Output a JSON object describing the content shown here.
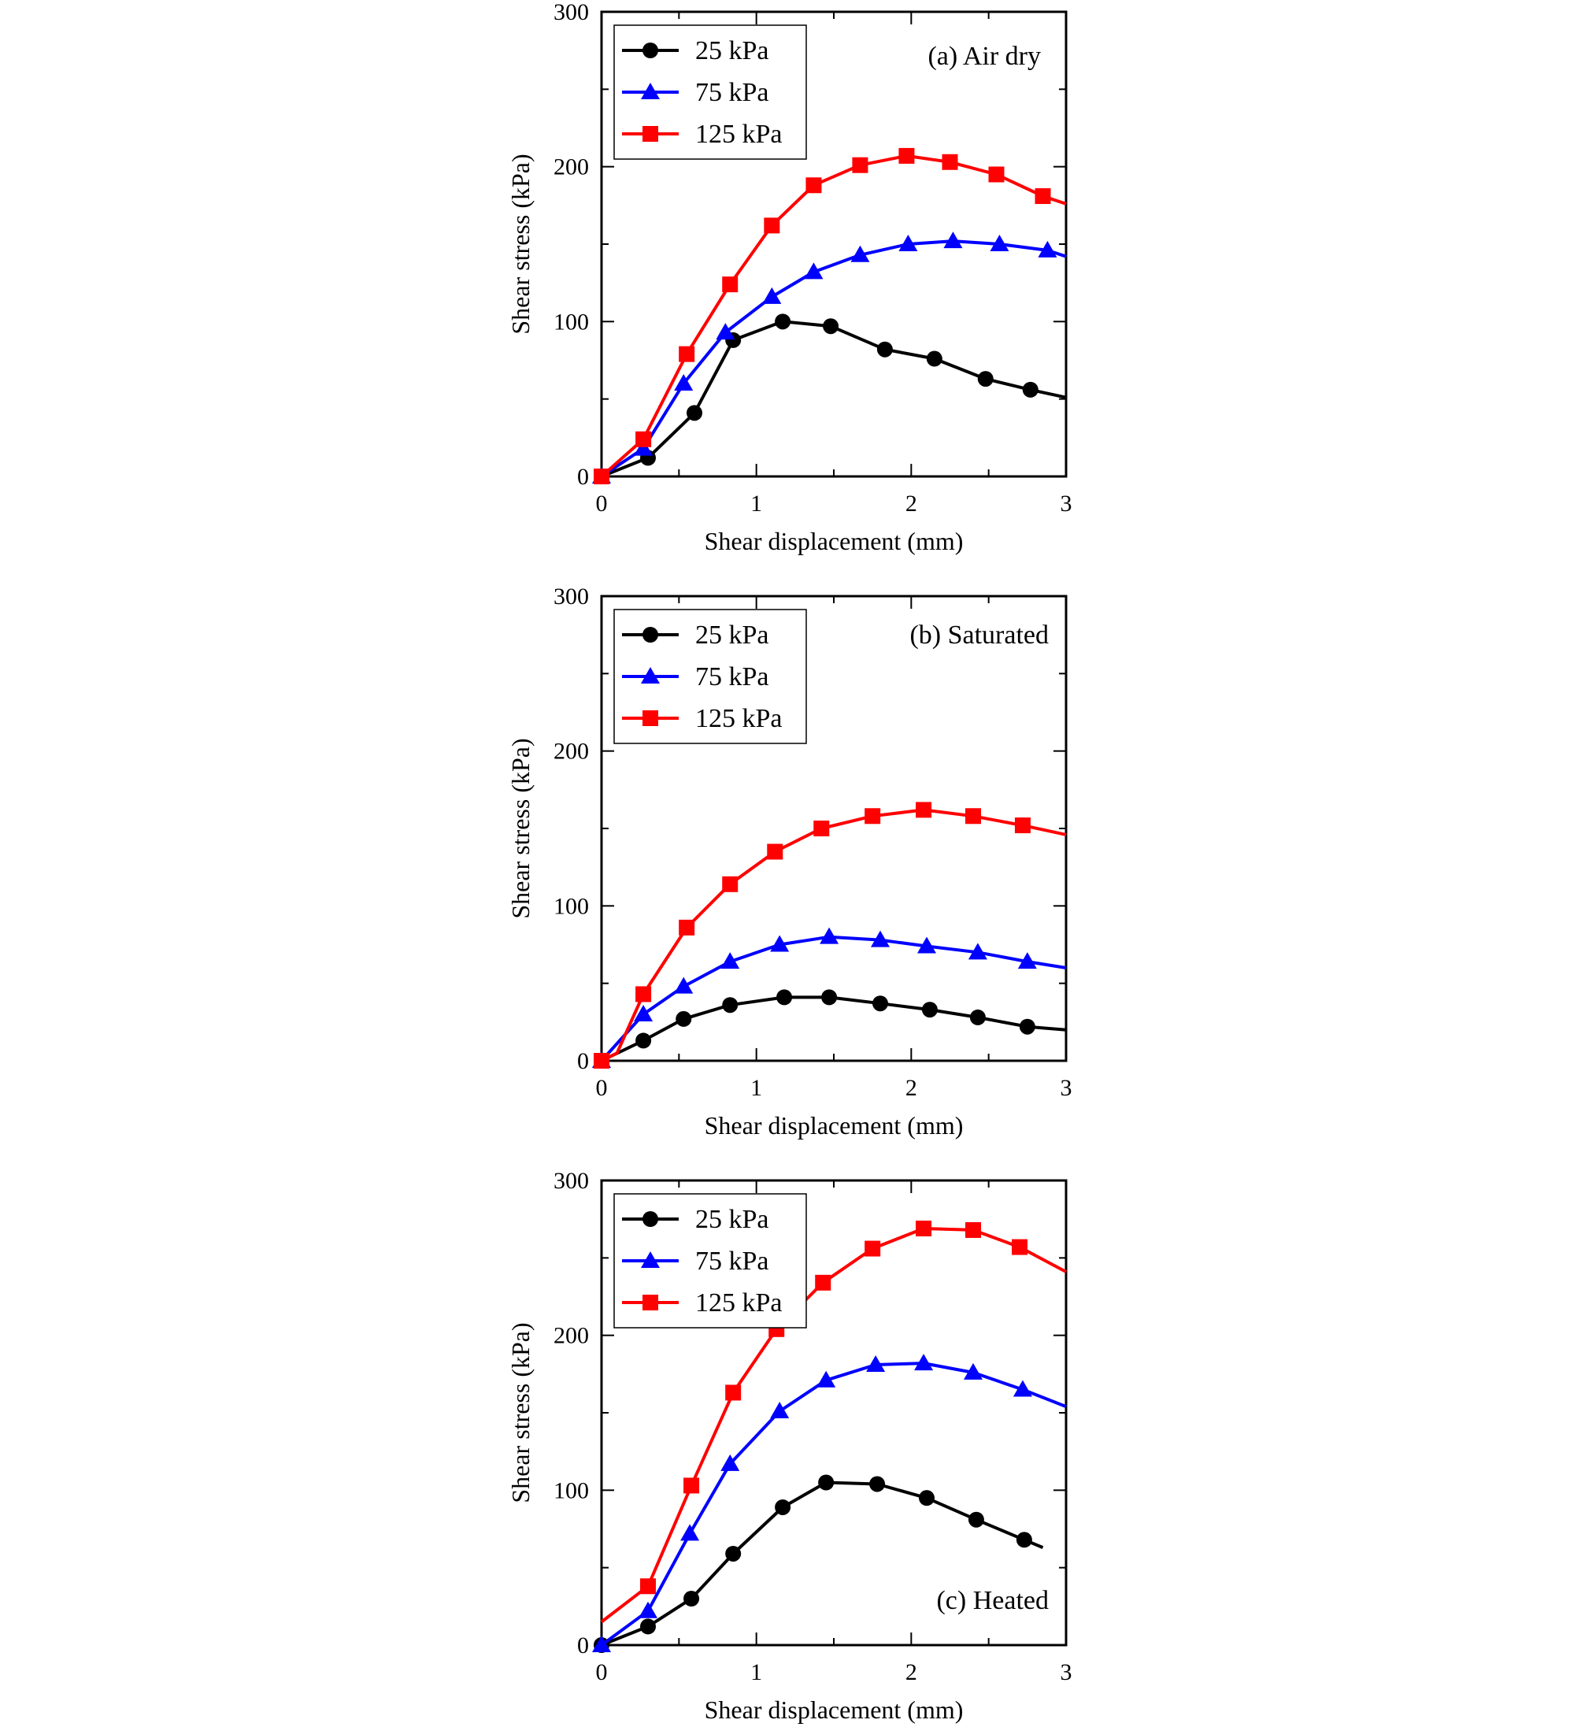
{
  "chart_data": [
    {
      "type": "line",
      "title": "(a) Air dry",
      "xlabel": "Shear displacement (mm)",
      "ylabel": "Shear stress (kPa)",
      "xlim": [
        0,
        3
      ],
      "ylim": [
        0,
        300
      ],
      "xticks": [
        "0",
        "1",
        "2",
        "3"
      ],
      "yticks": [
        "0",
        "100",
        "200",
        "300"
      ],
      "grid": false,
      "legend_position": "top-left",
      "title_position": "top-right",
      "series": [
        {
          "name": "25 kPa",
          "color": "#000000",
          "marker": "circle",
          "x": [
            0,
            0.3,
            0.6,
            0.85,
            1.17,
            1.48,
            1.83,
            2.15,
            2.48,
            2.77,
            3.0
          ],
          "y": [
            0,
            12,
            41,
            88,
            100,
            97,
            82,
            76,
            63,
            56,
            51
          ],
          "markers_x": [
            0,
            0.3,
            0.6,
            0.85,
            1.17,
            1.48,
            1.83,
            2.15,
            2.48,
            2.77
          ],
          "markers_y": [
            0,
            12,
            41,
            88,
            100,
            97,
            82,
            76,
            63,
            56
          ]
        },
        {
          "name": "75 kPa",
          "color": "#0000ff",
          "marker": "triangle",
          "x": [
            0,
            0.27,
            0.53,
            0.8,
            1.1,
            1.37,
            1.67,
            1.98,
            2.27,
            2.57,
            2.88,
            3.0
          ],
          "y": [
            0,
            18,
            60,
            93,
            116,
            132,
            143,
            150,
            152,
            150,
            146,
            142
          ],
          "markers_x": [
            0,
            0.27,
            0.53,
            0.8,
            1.1,
            1.37,
            1.67,
            1.98,
            2.27,
            2.57,
            2.88
          ],
          "markers_y": [
            0,
            18,
            60,
            93,
            116,
            132,
            143,
            150,
            152,
            150,
            146
          ]
        },
        {
          "name": "125 kPa",
          "color": "#ff0000",
          "marker": "square",
          "x": [
            0,
            0.27,
            0.55,
            0.83,
            1.1,
            1.37,
            1.67,
            1.97,
            2.25,
            2.55,
            2.85,
            3.0
          ],
          "y": [
            0,
            24,
            79,
            124,
            162,
            188,
            201,
            207,
            203,
            195,
            181,
            176
          ],
          "markers_x": [
            0,
            0.27,
            0.55,
            0.83,
            1.1,
            1.37,
            1.67,
            1.97,
            2.25,
            2.55,
            2.85
          ],
          "markers_y": [
            0,
            24,
            79,
            124,
            162,
            188,
            201,
            207,
            203,
            195,
            181
          ]
        }
      ]
    },
    {
      "type": "line",
      "title": "(b) Saturated",
      "xlabel": "Shear displacement (mm)",
      "ylabel": "Shear stress (kPa)",
      "xlim": [
        0,
        3
      ],
      "ylim": [
        0,
        300
      ],
      "xticks": [
        "0",
        "1",
        "2",
        "3"
      ],
      "yticks": [
        "0",
        "100",
        "200",
        "300"
      ],
      "grid": false,
      "legend_position": "top-left",
      "title_position": "top-right",
      "series": [
        {
          "name": "25 kPa",
          "color": "#000000",
          "marker": "circle",
          "x": [
            0,
            0.27,
            0.53,
            0.83,
            1.18,
            1.47,
            1.8,
            2.12,
            2.43,
            2.75,
            3.0
          ],
          "y": [
            0,
            13,
            27,
            36,
            41,
            41,
            37,
            33,
            28,
            22,
            20
          ],
          "markers_x": [
            0,
            0.27,
            0.53,
            0.83,
            1.18,
            1.47,
            1.8,
            2.12,
            2.43,
            2.75
          ],
          "markers_y": [
            0,
            13,
            27,
            36,
            41,
            41,
            37,
            33,
            28,
            22
          ]
        },
        {
          "name": "75 kPa",
          "color": "#0000ff",
          "marker": "triangle",
          "x": [
            0,
            0.27,
            0.53,
            0.83,
            1.15,
            1.47,
            1.8,
            2.1,
            2.43,
            2.75,
            3.0
          ],
          "y": [
            0,
            30,
            48,
            64,
            75,
            80,
            78,
            74,
            70,
            64,
            60
          ],
          "markers_x": [
            0,
            0.27,
            0.53,
            0.83,
            1.15,
            1.47,
            1.8,
            2.1,
            2.43,
            2.75
          ],
          "markers_y": [
            0,
            30,
            48,
            64,
            75,
            80,
            78,
            74,
            70,
            64
          ]
        },
        {
          "name": "125 kPa",
          "color": "#ff0000",
          "marker": "square",
          "x": [
            0,
            0.1,
            0.27,
            0.55,
            0.83,
            1.12,
            1.42,
            1.75,
            2.08,
            2.4,
            2.72,
            3.0
          ],
          "y": [
            0,
            5,
            43,
            86,
            114,
            135,
            150,
            158,
            162,
            158,
            152,
            146
          ],
          "markers_x": [
            0,
            0.27,
            0.55,
            0.83,
            1.12,
            1.42,
            1.75,
            2.08,
            2.4,
            2.72
          ],
          "markers_y": [
            0,
            43,
            86,
            114,
            135,
            150,
            158,
            162,
            158,
            152
          ]
        }
      ]
    },
    {
      "type": "line",
      "title": "(c) Heated",
      "xlabel": "Shear displacement (mm)",
      "ylabel": "Shear stress (kPa)",
      "xlim": [
        0,
        3
      ],
      "ylim": [
        0,
        300
      ],
      "xticks": [
        "0",
        "1",
        "2",
        "3"
      ],
      "yticks": [
        "0",
        "100",
        "200",
        "300"
      ],
      "grid": false,
      "legend_position": "top-left",
      "title_position": "bottom-right",
      "series": [
        {
          "name": "25 kPa",
          "color": "#000000",
          "marker": "circle",
          "x": [
            0,
            0.3,
            0.58,
            0.85,
            1.17,
            1.45,
            1.78,
            2.1,
            2.42,
            2.73,
            2.85
          ],
          "y": [
            0,
            12,
            30,
            59,
            89,
            105,
            104,
            95,
            81,
            68,
            63
          ],
          "markers_x": [
            0,
            0.3,
            0.58,
            0.85,
            1.17,
            1.45,
            1.78,
            2.1,
            2.42,
            2.73
          ],
          "markers_y": [
            0,
            12,
            30,
            59,
            89,
            105,
            104,
            95,
            81,
            68
          ]
        },
        {
          "name": "75 kPa",
          "color": "#0000ff",
          "marker": "triangle",
          "x": [
            0,
            0.3,
            0.57,
            0.83,
            1.15,
            1.45,
            1.77,
            2.08,
            2.4,
            2.72,
            3.0
          ],
          "y": [
            0,
            22,
            72,
            117,
            151,
            171,
            181,
            182,
            176,
            165,
            154
          ],
          "markers_x": [
            0,
            0.3,
            0.57,
            0.83,
            1.15,
            1.45,
            1.77,
            2.08,
            2.4,
            2.72
          ],
          "markers_y": [
            0,
            22,
            72,
            117,
            151,
            171,
            181,
            182,
            176,
            165
          ]
        },
        {
          "name": "125 kPa",
          "color": "#ff0000",
          "marker": "square",
          "x": [
            0,
            0.3,
            0.58,
            0.85,
            1.13,
            1.43,
            1.75,
            2.08,
            2.4,
            2.7,
            3.0
          ],
          "y": [
            15,
            38,
            103,
            163,
            204,
            234,
            256,
            269,
            268,
            257,
            241
          ],
          "markers_x": [
            0.3,
            0.58,
            0.85,
            1.13,
            1.43,
            1.75,
            2.08,
            2.4,
            2.7
          ],
          "markers_y": [
            38,
            103,
            163,
            204,
            234,
            256,
            269,
            268,
            257
          ]
        }
      ]
    }
  ]
}
